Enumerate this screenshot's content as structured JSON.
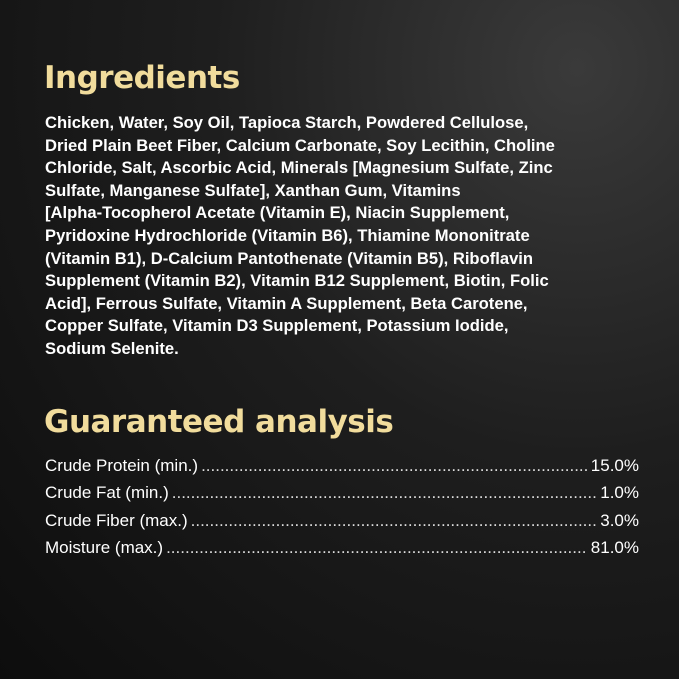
{
  "ingredients": {
    "title": "Ingredients",
    "lines": [
      "Chicken, Water, Soy Oil, Tapioca Starch, Powdered Cellulose,",
      "Dried Plain Beet Fiber, Calcium Carbonate, Soy Lecithin, Choline",
      "Chloride, Salt, Ascorbic Acid, Minerals [Magnesium Sulfate, Zinc",
      "Sulfate, Manganese Sulfate], Xanthan Gum, Vitamins",
      "[Alpha-Tocopherol Acetate (Vitamin E), Niacin Supplement,",
      "Pyridoxine Hydrochloride (Vitamin B6), Thiamine Mononitrate",
      "(Vitamin B1),  D-Calcium Pantothenate (Vitamin B5), Riboflavin",
      "Supplement (Vitamin B2), Vitamin B12 Supplement, Biotin, Folic",
      "Acid], Ferrous Sulfate, Vitamin A Supplement, Beta Carotene,",
      "Copper Sulfate, Vitamin D3 Supplement, Potassium Iodide,",
      "Sodium Selenite."
    ]
  },
  "analysis": {
    "title": "Guaranteed analysis",
    "rows": [
      {
        "label": "Crude Protein (min.)",
        "value": "15.0%"
      },
      {
        "label": "Crude Fat (min.)",
        "value": "1.0%"
      },
      {
        "label": "Crude Fiber (max.)",
        "value": "3.0%"
      },
      {
        "label": "Moisture (max.)",
        "value": "81.0%"
      }
    ]
  },
  "colors": {
    "heading": "#f1dc9c",
    "background": "#141414",
    "text": "#ffffff"
  }
}
